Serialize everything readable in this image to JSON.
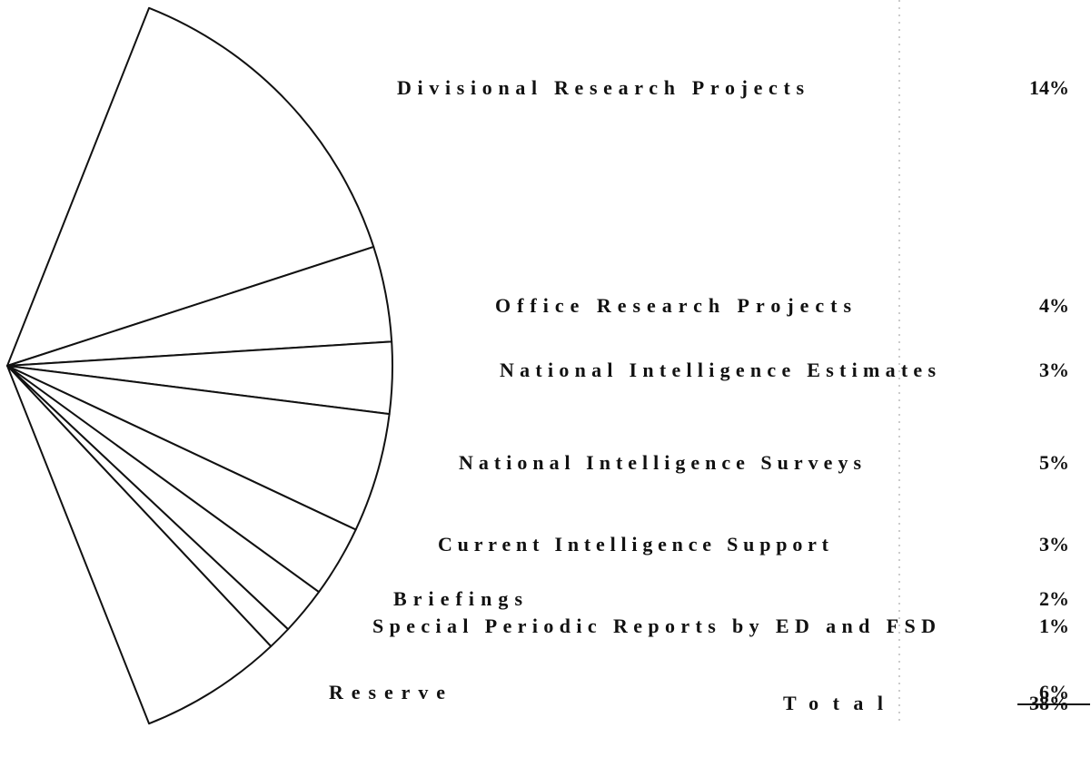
{
  "chart_data": {
    "type": "pie",
    "categories": [
      "Divisional Research Projects",
      "Office Research Projects",
      "National Intelligence Estimates",
      "National Intelligence Surveys",
      "Current Intelligence Support",
      "Briefings",
      "Special Periodic Reports by ED and FSD",
      "Reserve"
    ],
    "values": [
      14,
      4,
      3,
      5,
      3,
      2,
      1,
      6
    ],
    "value_labels": [
      "14%",
      "4%",
      "3%",
      "5%",
      "3%",
      "2%",
      "1%",
      "6%"
    ],
    "total": {
      "label": "Total",
      "value": 38,
      "value_label": "38%"
    }
  }
}
